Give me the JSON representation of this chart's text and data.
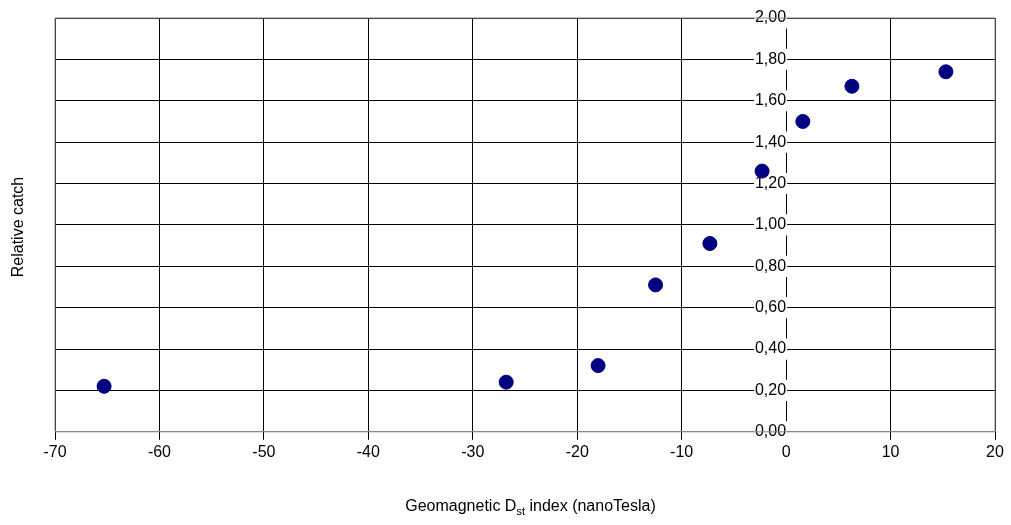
{
  "chart_data": {
    "type": "scatter",
    "xlabel": "Geomagnetic D$_{st}$ index (nanoTesla)",
    "ylabel": "Relative catch",
    "x": [
      -65.3,
      -26.8,
      -18.0,
      -12.5,
      -7.3,
      -2.3,
      1.6,
      6.3,
      15.3
    ],
    "series": [
      {
        "color": "#000080",
        "values": [
          0.22,
          0.24,
          0.32,
          0.71,
          0.91,
          1.26,
          1.5,
          1.67,
          1.74
        ]
      }
    ],
    "xlim": [
      -70,
      20
    ],
    "xticks": [
      -70,
      -60,
      -50,
      -40,
      -30,
      -20,
      -10,
      0,
      10,
      20
    ],
    "ylim": [
      0,
      2
    ],
    "yticks": [
      {
        "value": 0,
        "label": "0,00"
      },
      {
        "value": 0.2,
        "label": "0,20"
      },
      {
        "value": 0.4,
        "label": "0,40"
      },
      {
        "value": 0.6,
        "label": "0,60"
      },
      {
        "value": 0.8,
        "label": "0,80"
      },
      {
        "value": 1,
        "label": "1,00"
      },
      {
        "value": 1.2,
        "label": "1,20"
      },
      {
        "value": 1.4,
        "label": "1,40"
      },
      {
        "value": 1.6,
        "label": "1,60"
      },
      {
        "value": 1.8,
        "label": "1,80"
      },
      {
        "value": 2,
        "label": "2,00"
      }
    ],
    "grid": true,
    "legend": false,
    "marker": "circle"
  }
}
